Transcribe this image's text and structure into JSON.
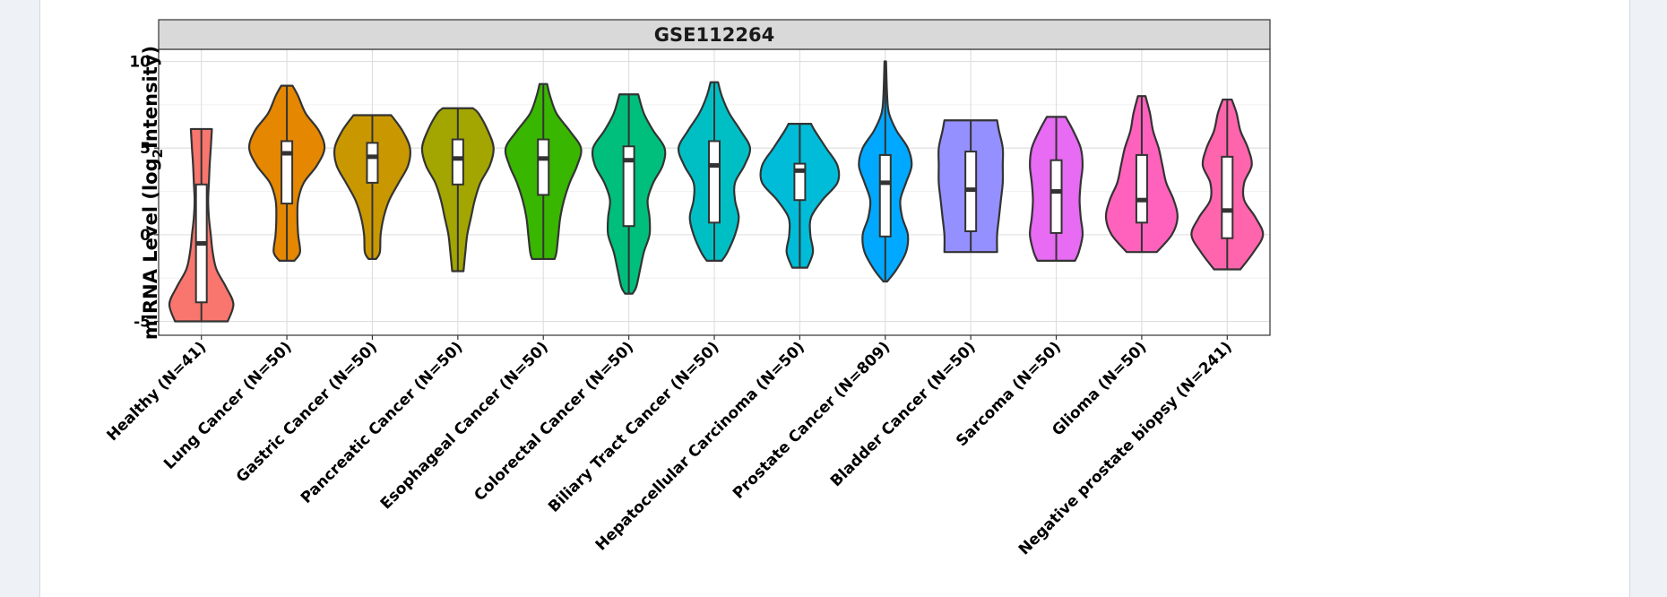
{
  "chart_data": {
    "type": "violin",
    "title": "GSE112264",
    "ylabel_prefix": "miRNA Level (log",
    "ylabel_sub": "2",
    "ylabel_suffix": "Intensity)",
    "ylim": [
      -5.8,
      10.7
    ],
    "yticks": [
      -5,
      0,
      5,
      10
    ],
    "ytick_labels": [
      "-5",
      "0",
      "5",
      "10"
    ],
    "grid": true,
    "legend": "none",
    "categories": [
      {
        "label": "Healthy (N=41)",
        "color": "#F8766D",
        "min": -5.0,
        "max": 6.1,
        "q1": -3.9,
        "median": -0.5,
        "q3": 2.9,
        "shape": [
          [
            -5.0,
            0.7
          ],
          [
            -4.0,
            0.85
          ],
          [
            -3.0,
            0.65
          ],
          [
            -2.0,
            0.4
          ],
          [
            -1.0,
            0.3
          ],
          [
            0.0,
            0.25
          ],
          [
            1.0,
            0.2
          ],
          [
            2.0,
            0.18
          ],
          [
            3.0,
            0.2
          ],
          [
            4.0,
            0.22
          ],
          [
            5.0,
            0.25
          ],
          [
            6.1,
            0.28
          ]
        ]
      },
      {
        "label": "Lung Cancer (N=50)",
        "color": "#E58700",
        "min": -1.5,
        "max": 8.6,
        "q1": 1.8,
        "median": 4.7,
        "q3": 5.4,
        "shape": [
          [
            -1.5,
            0.2
          ],
          [
            -1.0,
            0.35
          ],
          [
            0.0,
            0.3
          ],
          [
            1.0,
            0.28
          ],
          [
            2.0,
            0.3
          ],
          [
            3.0,
            0.45
          ],
          [
            4.0,
            0.8
          ],
          [
            5.0,
            1.0
          ],
          [
            6.0,
            0.85
          ],
          [
            7.0,
            0.5
          ],
          [
            8.0,
            0.3
          ],
          [
            8.6,
            0.15
          ]
        ]
      },
      {
        "label": "Gastric Cancer (N=50)",
        "color": "#C99800",
        "min": -1.4,
        "max": 6.9,
        "q1": 3.0,
        "median": 4.5,
        "q3": 5.3,
        "shape": [
          [
            -1.4,
            0.1
          ],
          [
            -1.0,
            0.2
          ],
          [
            0.0,
            0.22
          ],
          [
            1.0,
            0.3
          ],
          [
            2.0,
            0.45
          ],
          [
            3.0,
            0.7
          ],
          [
            4.0,
            0.95
          ],
          [
            5.0,
            1.0
          ],
          [
            6.0,
            0.8
          ],
          [
            6.9,
            0.5
          ]
        ]
      },
      {
        "label": "Pancreatic Cancer (N=50)",
        "color": "#A3A500",
        "min": -2.1,
        "max": 7.3,
        "q1": 2.9,
        "median": 4.4,
        "q3": 5.5,
        "shape": [
          [
            -2.1,
            0.15
          ],
          [
            -1.0,
            0.2
          ],
          [
            0.0,
            0.25
          ],
          [
            1.0,
            0.35
          ],
          [
            2.0,
            0.45
          ],
          [
            3.0,
            0.6
          ],
          [
            4.0,
            0.85
          ],
          [
            5.0,
            0.95
          ],
          [
            6.0,
            0.8
          ],
          [
            7.0,
            0.55
          ],
          [
            7.3,
            0.4
          ]
        ]
      },
      {
        "label": "Esophageal Cancer (N=50)",
        "color": "#39B600",
        "min": -1.4,
        "max": 8.7,
        "q1": 2.3,
        "median": 4.4,
        "q3": 5.5,
        "shape": [
          [
            -1.4,
            0.3
          ],
          [
            -1.0,
            0.35
          ],
          [
            0.0,
            0.4
          ],
          [
            1.0,
            0.45
          ],
          [
            2.0,
            0.55
          ],
          [
            3.0,
            0.7
          ],
          [
            4.0,
            0.9
          ],
          [
            5.0,
            1.0
          ],
          [
            6.0,
            0.7
          ],
          [
            7.0,
            0.35
          ],
          [
            8.0,
            0.18
          ],
          [
            8.7,
            0.1
          ]
        ]
      },
      {
        "label": "Colorectal Cancer (N=50)",
        "color": "#00BF7D",
        "min": -3.4,
        "max": 8.1,
        "q1": 0.5,
        "median": 4.3,
        "q3": 5.1,
        "shape": [
          [
            -3.4,
            0.1
          ],
          [
            -3.0,
            0.2
          ],
          [
            -2.0,
            0.3
          ],
          [
            -1.0,
            0.4
          ],
          [
            0.0,
            0.55
          ],
          [
            1.0,
            0.55
          ],
          [
            2.0,
            0.5
          ],
          [
            3.0,
            0.65
          ],
          [
            4.0,
            0.9
          ],
          [
            5.0,
            0.95
          ],
          [
            6.0,
            0.65
          ],
          [
            7.0,
            0.4
          ],
          [
            8.1,
            0.25
          ]
        ]
      },
      {
        "label": "Biliary Tract Cancer (N=50)",
        "color": "#00BFC4",
        "min": -1.5,
        "max": 8.8,
        "q1": 0.7,
        "median": 4.0,
        "q3": 5.4,
        "shape": [
          [
            -1.5,
            0.2
          ],
          [
            -1.0,
            0.35
          ],
          [
            0.0,
            0.55
          ],
          [
            1.0,
            0.65
          ],
          [
            2.0,
            0.55
          ],
          [
            3.0,
            0.55
          ],
          [
            4.0,
            0.8
          ],
          [
            5.0,
            0.95
          ],
          [
            6.0,
            0.7
          ],
          [
            7.0,
            0.4
          ],
          [
            8.0,
            0.2
          ],
          [
            8.8,
            0.1
          ]
        ]
      },
      {
        "label": "Hepatocellular Carcinoma (N=50)",
        "color": "#00BCD8",
        "min": -1.9,
        "max": 6.4,
        "q1": 2.0,
        "median": 3.7,
        "q3": 4.1,
        "shape": [
          [
            -1.9,
            0.2
          ],
          [
            -1.0,
            0.35
          ],
          [
            0.0,
            0.28
          ],
          [
            1.0,
            0.3
          ],
          [
            2.0,
            0.6
          ],
          [
            3.0,
            1.0
          ],
          [
            4.0,
            1.0
          ],
          [
            5.0,
            0.7
          ],
          [
            6.0,
            0.4
          ],
          [
            6.4,
            0.3
          ]
        ]
      },
      {
        "label": "Prostate Cancer (N=809)",
        "color": "#00A9FF",
        "min": -2.7,
        "max": 10.0,
        "q1": -0.1,
        "median": 3.0,
        "q3": 4.6,
        "shape": [
          [
            -2.7,
            0.05
          ],
          [
            -2.0,
            0.3
          ],
          [
            -1.0,
            0.55
          ],
          [
            0.0,
            0.6
          ],
          [
            1.0,
            0.45
          ],
          [
            2.0,
            0.4
          ],
          [
            3.0,
            0.55
          ],
          [
            4.0,
            0.7
          ],
          [
            5.0,
            0.6
          ],
          [
            6.0,
            0.3
          ],
          [
            7.0,
            0.1
          ],
          [
            8.0,
            0.05
          ],
          [
            10.0,
            0.02
          ]
        ]
      },
      {
        "label": "Bladder Cancer (N=50)",
        "color": "#9590FF",
        "min": -1.0,
        "max": 6.6,
        "q1": 0.2,
        "median": 2.6,
        "q3": 4.8,
        "shape": [
          [
            -1.0,
            0.7
          ],
          [
            0.0,
            0.7
          ],
          [
            1.0,
            0.75
          ],
          [
            2.0,
            0.8
          ],
          [
            3.0,
            0.85
          ],
          [
            4.0,
            0.85
          ],
          [
            5.0,
            0.85
          ],
          [
            6.0,
            0.75
          ],
          [
            6.6,
            0.7
          ]
        ]
      },
      {
        "label": "Sarcoma (N=50)",
        "color": "#E76BF3",
        "min": -1.5,
        "max": 6.8,
        "q1": 0.1,
        "median": 2.5,
        "q3": 4.3,
        "shape": [
          [
            -1.5,
            0.5
          ],
          [
            -1.0,
            0.6
          ],
          [
            0.0,
            0.7
          ],
          [
            1.0,
            0.65
          ],
          [
            2.0,
            0.62
          ],
          [
            3.0,
            0.65
          ],
          [
            4.0,
            0.7
          ],
          [
            5.0,
            0.65
          ],
          [
            6.0,
            0.45
          ],
          [
            6.8,
            0.25
          ]
        ]
      },
      {
        "label": "Glioma (N=50)",
        "color": "#FF62BC",
        "min": -1.0,
        "max": 8.0,
        "q1": 0.7,
        "median": 2.0,
        "q3": 4.6,
        "shape": [
          [
            -1.0,
            0.4
          ],
          [
            0.0,
            0.8
          ],
          [
            1.0,
            0.95
          ],
          [
            2.0,
            0.85
          ],
          [
            3.0,
            0.65
          ],
          [
            4.0,
            0.55
          ],
          [
            5.0,
            0.45
          ],
          [
            6.0,
            0.3
          ],
          [
            7.0,
            0.22
          ],
          [
            8.0,
            0.1
          ]
        ]
      },
      {
        "label": "Negative prostate biopsy (N=241)",
        "color": "#FF65AC",
        "min": -2.0,
        "max": 7.8,
        "q1": -0.2,
        "median": 1.4,
        "q3": 4.5,
        "shape": [
          [
            -2.0,
            0.35
          ],
          [
            -1.0,
            0.7
          ],
          [
            0.0,
            0.95
          ],
          [
            1.0,
            0.75
          ],
          [
            2.0,
            0.45
          ],
          [
            3.0,
            0.45
          ],
          [
            4.0,
            0.65
          ],
          [
            5.0,
            0.55
          ],
          [
            6.0,
            0.35
          ],
          [
            7.0,
            0.25
          ],
          [
            7.8,
            0.12
          ]
        ]
      }
    ]
  }
}
